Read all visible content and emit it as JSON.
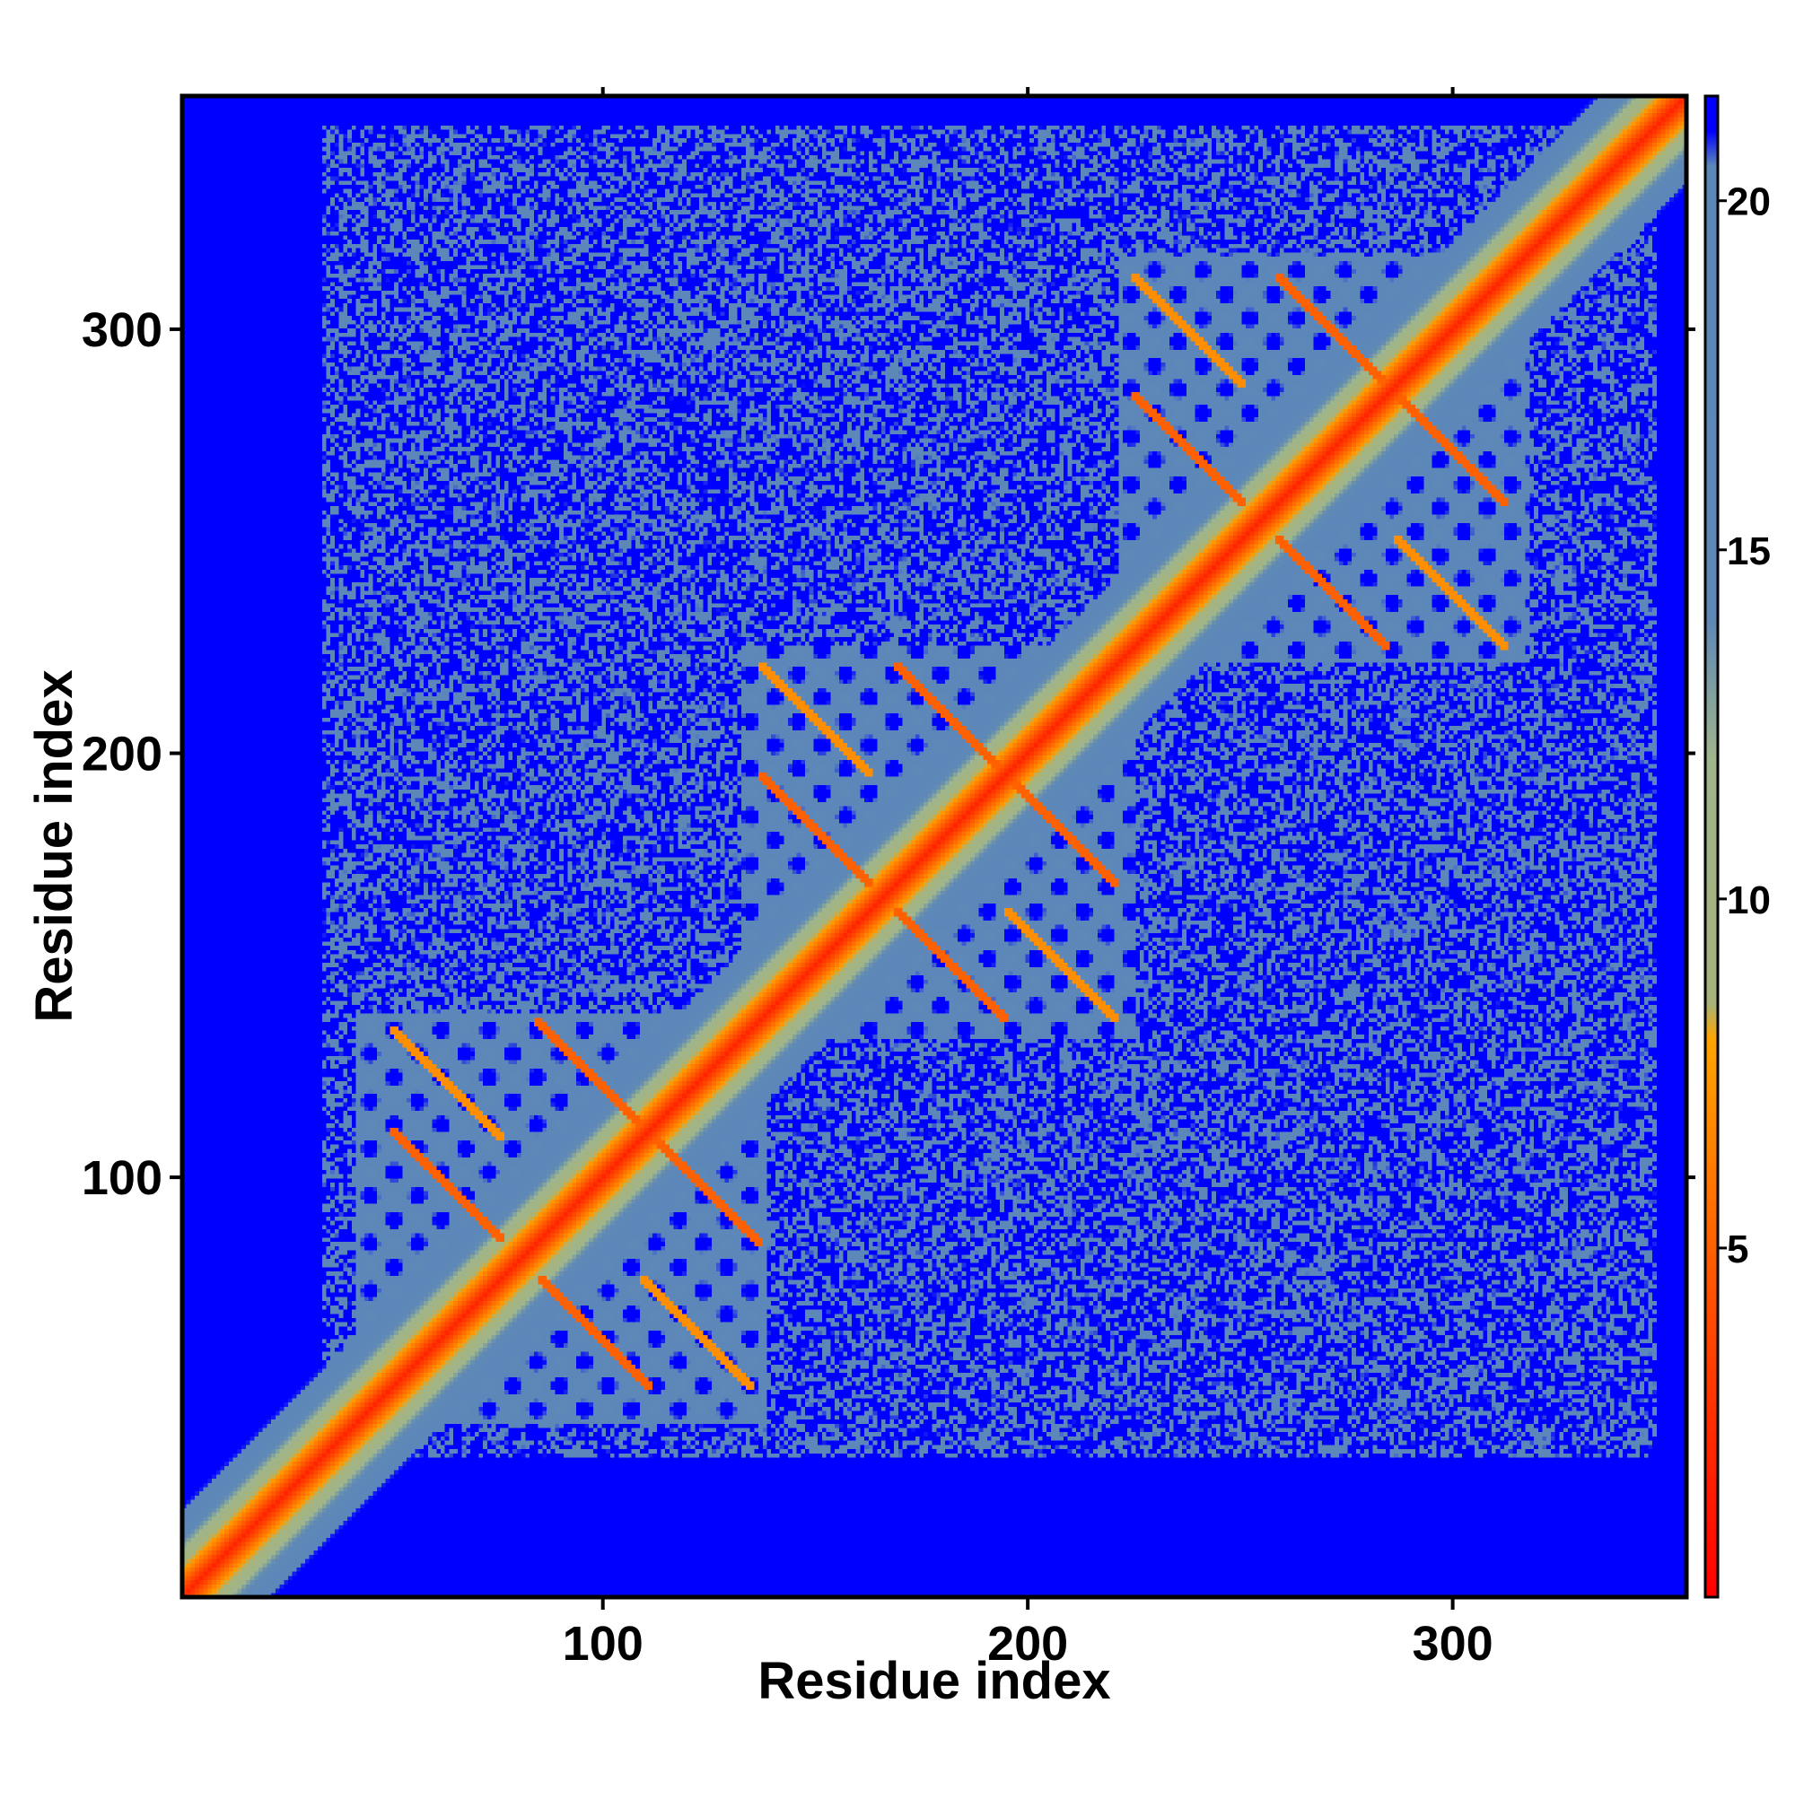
{
  "chart_data": {
    "type": "heatmap",
    "title": "",
    "xlabel": "Residue index",
    "ylabel": "Residue index",
    "xlim": [
      1,
      355
    ],
    "ylim": [
      1,
      355
    ],
    "x_ticks": [
      100,
      200,
      300
    ],
    "y_ticks": [
      100,
      200,
      300
    ],
    "x_tick_labels": [
      "100",
      "200",
      "300"
    ],
    "y_tick_labels": [
      "100",
      "200",
      "300"
    ],
    "colorbar": {
      "range": [
        0,
        21.5
      ],
      "ticks": [
        5,
        10,
        15,
        20
      ],
      "tick_labels": [
        "5",
        "10",
        "15",
        "20"
      ],
      "color_stops": [
        {
          "value": 0,
          "color": "#ff0000"
        },
        {
          "value": 4,
          "color": "#ff4a00"
        },
        {
          "value": 8,
          "color": "#ffa500"
        },
        {
          "value": 8.5,
          "color": "#a6b27a"
        },
        {
          "value": 12,
          "color": "#9fb58c"
        },
        {
          "value": 14,
          "color": "#5e88b6"
        },
        {
          "value": 20.5,
          "color": "#5b87b9"
        },
        {
          "value": 21,
          "color": "#0000ff"
        }
      ],
      "saturation_color": "#0000ff"
    },
    "diagonal_contact_value": 2,
    "domains": [
      {
        "start": 42,
        "end": 138
      },
      {
        "start": 133,
        "end": 225
      },
      {
        "start": 222,
        "end": 318
      }
    ],
    "helix_pairs": [
      {
        "i": 63,
        "j": 98,
        "value": 5
      },
      {
        "i": 97,
        "j": 124,
        "value": 5
      },
      {
        "i": 63,
        "j": 122,
        "value": 7
      },
      {
        "i": 150,
        "j": 182,
        "value": 5
      },
      {
        "i": 182,
        "j": 208,
        "value": 5
      },
      {
        "i": 150,
        "j": 208,
        "value": 7
      },
      {
        "i": 238,
        "j": 272,
        "value": 5
      },
      {
        "i": 272,
        "j": 300,
        "value": 5
      },
      {
        "i": 238,
        "j": 300,
        "value": 7
      }
    ],
    "grid": false,
    "legend": "colorbar-right"
  }
}
